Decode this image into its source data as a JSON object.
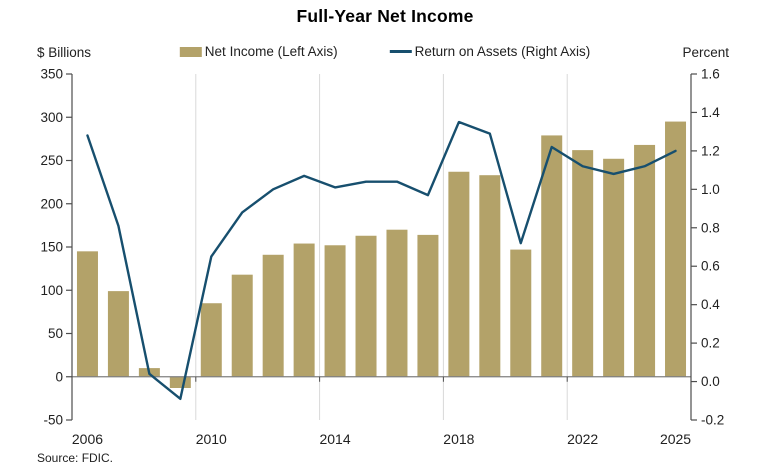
{
  "legend": {
    "items": [
      {
        "label": "Net Income (Left Axis)",
        "type": "bar"
      },
      {
        "label": "Return on Assets (Right Axis)",
        "type": "line"
      }
    ]
  },
  "chart_data": {
    "type": "bar+line combo",
    "title": "Full-Year Net Income",
    "source": "Source: FDIC.",
    "x": [
      2006,
      2007,
      2008,
      2009,
      2010,
      2011,
      2012,
      2013,
      2014,
      2015,
      2016,
      2017,
      2018,
      2019,
      2020,
      2021,
      2022,
      2023,
      2024,
      2025
    ],
    "x_tick_labels": [
      "2006",
      "2010",
      "2014",
      "2018",
      "2022",
      "2025"
    ],
    "grid_boundary_years": [
      2010,
      2014,
      2018,
      2022
    ],
    "left_axis": {
      "label": "$ Billions",
      "min": -50,
      "max": 350,
      "tick_step": 50,
      "ticks": [
        350,
        300,
        250,
        200,
        150,
        100,
        50,
        0,
        -50
      ]
    },
    "right_axis": {
      "label": "Percent",
      "min": -0.2,
      "max": 1.6,
      "tick_step": 0.2,
      "ticks": [
        "1.6",
        "1.4",
        "1.2",
        "1.0",
        "0.8",
        "0.6",
        "0.4",
        "0.2",
        "0.0",
        "-0.2"
      ]
    },
    "series": [
      {
        "name": "Net Income (Left Axis)",
        "type": "bar",
        "axis": "left",
        "color": "#b3a269",
        "values": [
          145,
          99,
          10,
          -13,
          85,
          118,
          141,
          154,
          152,
          163,
          170,
          164,
          237,
          233,
          147,
          279,
          262,
          252,
          268,
          295
        ]
      },
      {
        "name": "Return on Assets (Right Axis)",
        "type": "line",
        "axis": "right",
        "color": "#174f6e",
        "values": [
          1.28,
          0.81,
          0.04,
          -0.09,
          0.65,
          0.88,
          1.0,
          1.07,
          1.01,
          1.04,
          1.04,
          0.97,
          1.35,
          1.29,
          0.72,
          1.22,
          1.12,
          1.08,
          1.12,
          1.2
        ]
      }
    ],
    "colors": {
      "grid": "#d9d9d9",
      "zero_line": "#808080",
      "axis": "#4d4d4d",
      "text": "#212121"
    },
    "legend_position": "top-center",
    "grid": "vertical only"
  }
}
